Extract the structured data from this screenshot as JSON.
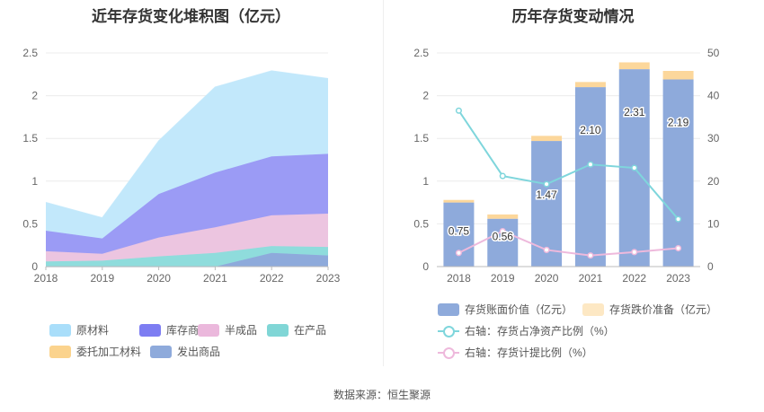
{
  "left_title": "近年存货变化堆积图（亿元）",
  "right_title": "历年存货变动情况",
  "source": "数据来源：恒生聚源",
  "chart_data": [
    {
      "type": "area",
      "stacked": true,
      "title": "近年存货变化堆积图（亿元）",
      "categories": [
        "2018",
        "2019",
        "2020",
        "2021",
        "2022",
        "2023"
      ],
      "ylim": [
        0,
        2.5
      ],
      "yticks": [
        "0",
        "0.5",
        "1",
        "1.5",
        "2",
        "2.5"
      ],
      "grid": true,
      "legend_position": "bottom",
      "series": [
        {
          "name": "发出商品",
          "color": "#8eaadb",
          "values": [
            0.0,
            0.0,
            0.0,
            0.0,
            0.16,
            0.13
          ]
        },
        {
          "name": "委托加工材料",
          "color": "#fcd79b",
          "values": [
            0.0,
            0.0,
            0.0,
            0.0,
            0.0,
            0.0
          ]
        },
        {
          "name": "在产品",
          "color": "#8fdcdc",
          "values": [
            0.06,
            0.07,
            0.12,
            0.16,
            0.08,
            0.1
          ]
        },
        {
          "name": "半成品",
          "color": "#ecc5e0",
          "values": [
            0.12,
            0.08,
            0.22,
            0.3,
            0.36,
            0.39
          ]
        },
        {
          "name": "库存商品",
          "color": "#9b9bf5",
          "values": [
            0.24,
            0.18,
            0.51,
            0.64,
            0.69,
            0.7
          ]
        },
        {
          "name": "原材料",
          "color": "#c2e8fb",
          "values": [
            0.33,
            0.24,
            0.62,
            1.0,
            1.0,
            0.88
          ]
        }
      ],
      "legend_order": [
        "原材料",
        "库存商品",
        "半成品",
        "在产品",
        "委托加工材料",
        "发出商品"
      ],
      "legend_colors": {
        "原材料": "#a9defa",
        "库存商品": "#7d7df2",
        "半成品": "#ebb8dc",
        "在产品": "#80d6d6",
        "委托加工材料": "#fbd38d",
        "发出商品": "#8eaadb"
      }
    },
    {
      "type": "bar",
      "stacked": true,
      "title": "历年存货变动情况",
      "categories": [
        "2018",
        "2019",
        "2020",
        "2021",
        "2022",
        "2023"
      ],
      "ylim": [
        0,
        2.5
      ],
      "yticks": [
        "0",
        "0.5",
        "1",
        "1.5",
        "2",
        "2.5"
      ],
      "y2lim": [
        0,
        50
      ],
      "y2ticks": [
        "0",
        "10",
        "20",
        "30",
        "40",
        "50"
      ],
      "grid": true,
      "legend_position": "bottom",
      "series": [
        {
          "name": "存货账面价值（亿元）",
          "color": "#8eaadb",
          "values": [
            0.75,
            0.56,
            1.47,
            2.1,
            2.31,
            2.19
          ],
          "labels": [
            "0.75",
            "0.56",
            "1.47",
            "2.10",
            "2.31",
            "2.19"
          ]
        },
        {
          "name": "存货跌价准备（亿元）",
          "color": "#fcd79b",
          "values": [
            0.03,
            0.05,
            0.06,
            0.06,
            0.08,
            0.1
          ]
        }
      ],
      "line_series": [
        {
          "name": "右轴：存货占净资产比例（%）",
          "color": "#7fd6dc",
          "values": [
            36.5,
            21.2,
            19.3,
            23.9,
            23.1,
            11.1
          ]
        },
        {
          "name": "右轴：存货计提比例（%）",
          "color": "#eeb9dc",
          "values": [
            3.2,
            8.3,
            3.9,
            2.6,
            3.4,
            4.3
          ]
        }
      ]
    }
  ]
}
